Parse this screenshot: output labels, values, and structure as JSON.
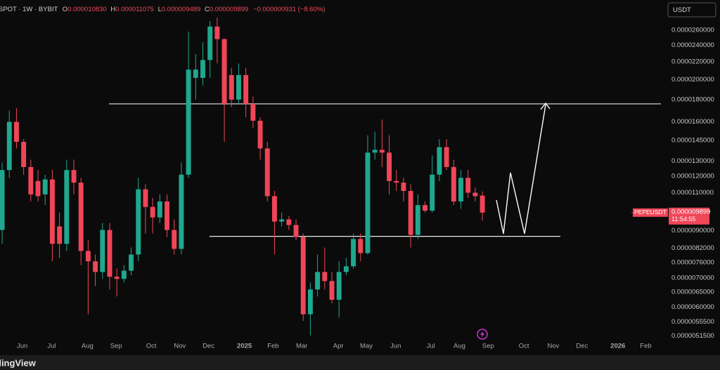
{
  "chart_data": {
    "type": "candlestick",
    "legend_line": {
      "symbol": "SPOT · 1W · BYBIT",
      "o": "O",
      "open": "0.000010830",
      "h": "H",
      "high": "0.000011075",
      "l": "L",
      "low": "0.000009489",
      "c": "C",
      "close": "0.000009899",
      "change": "−0.000000931 (−8.60%)"
    },
    "currency": "USDT",
    "symbol_tag": "PEPEUSDT",
    "price_tag": "0.000009899",
    "countdown": "11:54:55",
    "footer": "dingView",
    "log_scale": true,
    "grid": false,
    "up_color": "#1fa88e",
    "down_color": "#ef4658",
    "ylim": [
      5.03e-06,
      3.05e-05
    ],
    "xlim": [
      -0.3,
      92.4
    ],
    "yticks": [
      {
        "value": 2.6e-05,
        "label": "0.0000260000"
      },
      {
        "value": 2.4e-05,
        "label": "0.0000240000"
      },
      {
        "value": 2.2e-05,
        "label": "0.0000220000"
      },
      {
        "value": 2e-05,
        "label": "0.0000200000"
      },
      {
        "value": 1.8e-05,
        "label": "0.0000180000"
      },
      {
        "value": 1.6e-05,
        "label": "0.0000160000"
      },
      {
        "value": 1.45e-05,
        "label": "0.0000145000"
      },
      {
        "value": 1.3e-05,
        "label": "0.0000130000"
      },
      {
        "value": 1.2e-05,
        "label": "0.0000120000"
      },
      {
        "value": 1.1e-05,
        "label": "0.0000110000"
      },
      {
        "value": 9e-06,
        "label": "0.0000090000"
      },
      {
        "value": 8.2e-06,
        "label": "0.0000082000"
      },
      {
        "value": 7.6e-06,
        "label": "0.0000076000"
      },
      {
        "value": 7e-06,
        "label": "0.0000070000"
      },
      {
        "value": 6.5e-06,
        "label": "0.0000065000"
      },
      {
        "value": 6e-06,
        "label": "0.0000060000"
      },
      {
        "value": 5.55e-06,
        "label": "0.0000055500"
      },
      {
        "value": 5.15e-06,
        "label": "0.0000051500"
      }
    ],
    "xticks": [
      {
        "value": 2.8,
        "label": "Jun"
      },
      {
        "value": 6.9,
        "label": "Jul"
      },
      {
        "value": 11.9,
        "label": "Aug"
      },
      {
        "value": 15.9,
        "label": "Sep"
      },
      {
        "value": 20.8,
        "label": "Oct"
      },
      {
        "value": 24.8,
        "label": "Nov"
      },
      {
        "value": 28.8,
        "label": "Dec"
      },
      {
        "value": 33.8,
        "label": "2025"
      },
      {
        "value": 37.8,
        "label": "Feb"
      },
      {
        "value": 41.8,
        "label": "Mar"
      },
      {
        "value": 46.9,
        "label": "Apr"
      },
      {
        "value": 50.8,
        "label": "May"
      },
      {
        "value": 54.9,
        "label": "Jun"
      },
      {
        "value": 59.8,
        "label": "Jul"
      },
      {
        "value": 63.8,
        "label": "Aug"
      },
      {
        "value": 67.8,
        "label": "Sep"
      },
      {
        "value": 72.8,
        "label": "Oct"
      },
      {
        "value": 76.9,
        "label": "Nov"
      },
      {
        "value": 80.9,
        "label": "Dec"
      },
      {
        "value": 85.9,
        "label": "2026"
      },
      {
        "value": 89.8,
        "label": "Feb"
      }
    ],
    "levels": [
      1.76e-05,
      8.73e-06
    ],
    "open": [
      9.03e-06,
      1.24e-05,
      1.6e-05,
      1.44e-05,
      1.26e-05,
      1.17e-05,
      1.09e-05,
      1.18e-05,
      9.2e-06,
      8.39e-06,
      1.24e-05,
      1.16e-05,
      8.08e-06,
      7.65e-06,
      7.23e-06,
      9.03e-06,
      7.05e-06,
      6.97e-06,
      7.28e-06,
      7.93e-06,
      1.12e-05,
      1.02e-05,
      9.65e-06,
      1.05e-05,
      9.03e-06,
      8.17e-06,
      1.21e-05,
      2.02e-05,
      2.02e-05,
      2.22e-05,
      2.65e-05,
      2.48e-05,
      2.05e-05,
      1.8e-05,
      2.05e-05,
      1.76e-05,
      1.61e-05,
      1.39e-05,
      1.08e-05,
      9.44e-06,
      9.55e-06,
      9.27e-06,
      8.7e-06,
      5.78e-06,
      6.59e-06,
      7.23e-06,
      6.89e-06,
      6.24e-06,
      7.23e-06,
      7.45e-06,
      8.61e-06,
      7.99e-06,
      1.36e-05,
      1.38e-05,
      1.36e-05,
      1.17e-05,
      1.16e-05,
      1.11e-05,
      8.8e-06,
      1.03e-05,
      1e-05,
      1.21e-05,
      1.4e-05,
      1.26e-05,
      1.05e-05,
      1.19e-05,
      1.1e-05,
      1.083e-05
    ],
    "high": [
      1.29e-05,
      1.7e-05,
      1.72e-05,
      1.46e-05,
      1.31e-05,
      1.24e-05,
      1.21e-05,
      1.24e-05,
      9.9e-06,
      1.31e-05,
      1.31e-05,
      1.19e-05,
      8.55e-06,
      7.93e-06,
      9.37e-06,
      9.37e-06,
      7.36e-06,
      7.5e-06,
      8.23e-06,
      1.19e-05,
      1.15e-05,
      1.07e-05,
      1.09e-05,
      1.09e-05,
      9.55e-06,
      1.29e-05,
      2.58e-05,
      2.29e-05,
      2.44e-05,
      2.73e-05,
      2.78e-05,
      2.49e-05,
      2.13e-05,
      2.18e-05,
      2.13e-05,
      1.83e-05,
      1.64e-05,
      1.44e-05,
      1.11e-05,
      9.9e-06,
      9.72e-06,
      9.55e-06,
      8.86e-06,
      6.84e-06,
      7.93e-06,
      8.23e-06,
      7.23e-06,
      7.65e-06,
      7.79e-06,
      8.86e-06,
      8.86e-06,
      1.49e-05,
      1.52e-05,
      1.62e-05,
      1.49e-05,
      1.24e-05,
      1.19e-05,
      1.15e-05,
      1.09e-05,
      1.05e-05,
      1.34e-05,
      1.46e-05,
      1.46e-05,
      1.31e-05,
      1.24e-05,
      1.24e-05,
      1.13e-05,
      1.1075e-05
    ],
    "low": [
      8.39e-06,
      1.19e-05,
      1.39e-05,
      1.21e-05,
      1.05e-05,
      1.05e-05,
      1.03e-05,
      7.65e-06,
      7.79e-06,
      8.08e-06,
      1.09e-05,
      7.5e-06,
      5.78e-06,
      6.71e-06,
      6.97e-06,
      6.59e-06,
      6.35e-06,
      6.84e-06,
      7.1e-06,
      7.65e-06,
      8.86e-06,
      8.86e-06,
      9.37e-06,
      8.7e-06,
      7.93e-06,
      7.93e-06,
      1.19e-05,
      1.8e-05,
      1.94e-05,
      2.02e-05,
      2.18e-05,
      1.44e-05,
      1.73e-05,
      1.76e-05,
      1.64e-05,
      1.55e-05,
      1.31e-05,
      1.05e-05,
      7.93e-06,
      9.2e-06,
      9.03e-06,
      8.55e-06,
      5.58e-06,
      5.17e-06,
      6.35e-06,
      6.59e-06,
      6.12e-06,
      5.68e-06,
      7.1e-06,
      7.36e-06,
      7.65e-06,
      7.93e-06,
      1.31e-05,
      1.26e-05,
      1.09e-05,
      1.11e-05,
      1.05e-05,
      8.23e-06,
      8.61e-06,
      9.9e-06,
      9.9e-06,
      1.17e-05,
      1.24e-05,
      1.03e-05,
      1.01e-05,
      1.07e-05,
      1.05e-05,
      9.489e-06
    ],
    "close": [
      1.24e-05,
      1.6e-05,
      1.44e-05,
      1.26e-05,
      1.09e-05,
      1.08e-05,
      1.18e-05,
      8.39e-06,
      8.39e-06,
      1.24e-05,
      1.16e-05,
      8.08e-06,
      7.65e-06,
      7.23e-06,
      9.03e-06,
      7.05e-06,
      6.97e-06,
      7.28e-06,
      7.93e-06,
      1.12e-05,
      1.02e-05,
      9.65e-06,
      1.05e-05,
      9.03e-06,
      8.17e-06,
      1.21e-05,
      2.11e-05,
      2.11e-05,
      2.22e-05,
      2.65e-05,
      2.48e-05,
      1.76e-05,
      1.8e-05,
      2.05e-05,
      1.76e-05,
      1.61e-05,
      1.39e-05,
      1.08e-05,
      9.44e-06,
      9.55e-06,
      9.27e-06,
      8.7e-06,
      5.78e-06,
      6.59e-06,
      7.23e-06,
      6.89e-06,
      6.24e-06,
      7.23e-06,
      7.45e-06,
      8.61e-06,
      7.99e-06,
      1.36e-05,
      1.38e-05,
      1.36e-05,
      1.17e-05,
      1.16e-05,
      1.11e-05,
      8.8e-06,
      1.03e-05,
      1e-05,
      1.21e-05,
      1.4e-05,
      1.26e-05,
      1.05e-05,
      1.19e-05,
      1.1e-05,
      1.08e-05,
      9.899e-06
    ]
  }
}
